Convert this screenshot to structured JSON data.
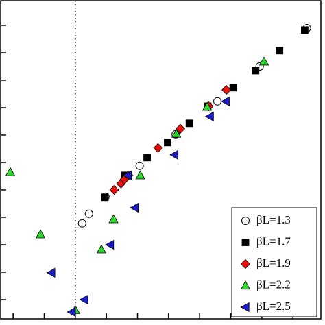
{
  "chart_data": {
    "type": "scatter",
    "xlim": [
      -2.4,
      7.9
    ],
    "xticks": [
      -2,
      -1,
      0,
      1,
      2,
      3,
      4,
      5,
      6,
      7
    ],
    "ylim": [
      -0.7,
      10.9
    ],
    "yticks": [
      0,
      1,
      2,
      3,
      4,
      5,
      6,
      7,
      8,
      9,
      10
    ],
    "vline": 0,
    "legend": "lower right",
    "series": [
      {
        "name": "βL=1.3",
        "marker": "circle",
        "color": "#ffffff",
        "x": [
          0.22,
          0.44,
          0.97,
          2.07,
          3.23,
          4.57,
          5.93,
          7.45
        ],
        "values": [
          2.78,
          3.13,
          3.75,
          4.88,
          6.03,
          7.23,
          8.5,
          9.9
        ]
      },
      {
        "name": "βL=1.7",
        "marker": "square",
        "color": "#000000",
        "x": [
          0.95,
          1.6,
          2.31,
          2.97,
          3.67,
          4.26,
          5.08,
          5.8,
          6.57,
          7.38
        ],
        "values": [
          3.73,
          4.53,
          5.18,
          5.73,
          6.43,
          7.05,
          7.73,
          8.35,
          9.08,
          9.83
        ]
      },
      {
        "name": "βL=1.9",
        "marker": "diamond",
        "color": "#e8130e",
        "x": [
          1.25,
          1.47,
          1.58,
          1.71,
          2.66,
          3.38,
          4.29,
          4.86
        ],
        "values": [
          4.0,
          4.23,
          4.38,
          4.53,
          5.53,
          6.23,
          7.05,
          7.65
        ]
      },
      {
        "name": "βL=2.2",
        "marker": "triangle-up",
        "color": "#2fd62f",
        "x": [
          -2.09,
          -1.12,
          0,
          0.84,
          1.23,
          2.09,
          3.25,
          4.24,
          6.07
        ],
        "values": [
          4.65,
          2.38,
          -0.38,
          1.83,
          2.93,
          4.53,
          6.05,
          7.03,
          8.68
        ]
      },
      {
        "name": "βL=2.5",
        "marker": "triangle-left",
        "color": "#1c1cc8",
        "x": [
          -0.11,
          0.29,
          -0.77,
          1.12,
          1.91,
          1.69,
          3.19,
          4.33,
          4.84
        ],
        "values": [
          -0.45,
          0,
          0.98,
          2.0,
          3.35,
          4.53,
          5.28,
          6.68,
          7.23
        ]
      }
    ]
  }
}
